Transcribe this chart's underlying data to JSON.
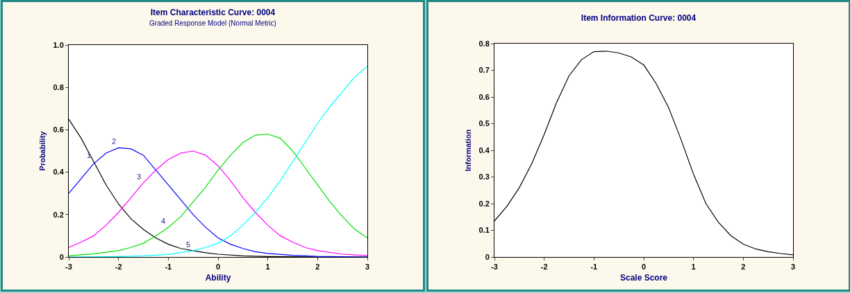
{
  "chart_data": [
    {
      "type": "line",
      "title": "Item Characteristic Curve: 0004",
      "subtitle": "Graded Response Model (Normal Metric)",
      "xlabel": "Ability",
      "ylabel": "Probability",
      "xlim": [
        -3,
        3
      ],
      "xticks": [
        -3,
        -2,
        -1,
        0,
        1,
        2,
        3
      ],
      "ylim": [
        0,
        1
      ],
      "yticks": [
        0,
        0.2,
        0.4,
        0.6,
        0.8,
        {
          "value": 1,
          "label": "1.0"
        }
      ],
      "marker": "none",
      "line_style": "solid",
      "series": [
        {
          "color": "#000000",
          "x": [
            -3,
            -2.75,
            -2.5,
            -2.25,
            -2,
            -1.75,
            -1.5,
            -1.25,
            -1,
            -0.75,
            -0.5,
            -0.25,
            0,
            0.5,
            1,
            1.5,
            2,
            3
          ],
          "values": [
            0.65,
            0.56,
            0.45,
            0.34,
            0.25,
            0.18,
            0.13,
            0.09,
            0.06,
            0.04,
            0.03,
            0.02,
            0.013,
            0.005,
            0.002,
            0.001,
            0,
            0
          ]
        },
        {
          "color": "#0000ff",
          "x": [
            -3,
            -2.75,
            -2.5,
            -2.25,
            -2,
            -1.75,
            -1.5,
            -1.25,
            -1,
            -0.75,
            -0.5,
            -0.25,
            0,
            0.25,
            0.5,
            0.75,
            1,
            1.5,
            2,
            2.5,
            3
          ],
          "values": [
            0.3,
            0.37,
            0.44,
            0.49,
            0.515,
            0.51,
            0.48,
            0.41,
            0.34,
            0.27,
            0.2,
            0.14,
            0.09,
            0.06,
            0.04,
            0.025,
            0.017,
            0.008,
            0.003,
            0.001,
            0
          ]
        },
        {
          "color": "#ff00ff",
          "x": [
            -3,
            -2.75,
            -2.5,
            -2.25,
            -2,
            -1.75,
            -1.5,
            -1.25,
            -1,
            -0.75,
            -0.5,
            -0.25,
            0,
            0.25,
            0.5,
            0.75,
            1,
            1.25,
            1.5,
            1.75,
            2,
            2.5,
            3
          ],
          "values": [
            0.045,
            0.07,
            0.1,
            0.15,
            0.21,
            0.28,
            0.35,
            0.41,
            0.46,
            0.49,
            0.5,
            0.48,
            0.43,
            0.36,
            0.28,
            0.21,
            0.15,
            0.1,
            0.07,
            0.045,
            0.03,
            0.013,
            0.007
          ]
        },
        {
          "color": "#00e000",
          "x": [
            -3,
            -2.5,
            -2,
            -1.75,
            -1.5,
            -1.25,
            -1,
            -0.75,
            -0.5,
            -0.25,
            0,
            0.25,
            0.5,
            0.75,
            1,
            1.25,
            1.5,
            1.75,
            2,
            2.25,
            2.5,
            2.75,
            3
          ],
          "values": [
            0.005,
            0.015,
            0.03,
            0.045,
            0.065,
            0.1,
            0.14,
            0.19,
            0.26,
            0.33,
            0.41,
            0.48,
            0.54,
            0.575,
            0.58,
            0.56,
            0.5,
            0.42,
            0.34,
            0.26,
            0.19,
            0.13,
            0.09
          ]
        },
        {
          "color": "#00ffff",
          "x": [
            -3,
            -2,
            -1.5,
            -1,
            -0.5,
            -0.25,
            0,
            0.25,
            0.5,
            0.75,
            1,
            1.25,
            1.5,
            1.75,
            2,
            2.25,
            2.5,
            2.75,
            3
          ],
          "values": [
            0,
            0.002,
            0.005,
            0.012,
            0.03,
            0.045,
            0.065,
            0.1,
            0.15,
            0.21,
            0.28,
            0.36,
            0.45,
            0.54,
            0.63,
            0.71,
            0.78,
            0.85,
            0.9
          ]
        }
      ],
      "annotations": [
        {
          "text": "1",
          "x": -2.5,
          "y": 0.45
        },
        {
          "text": "2",
          "x": -2,
          "y": 0.515
        },
        {
          "text": "3",
          "x": -1.5,
          "y": 0.35
        },
        {
          "text": "4",
          "x": -1,
          "y": 0.14
        },
        {
          "text": "5",
          "x": -0.5,
          "y": 0.03
        }
      ]
    },
    {
      "type": "line",
      "title": "Item Information Curve: 0004",
      "xlabel": "Scale Score",
      "ylabel": "Information",
      "xlim": [
        -3,
        3
      ],
      "xticks": [
        -3,
        -2,
        -1,
        0,
        1,
        2,
        3
      ],
      "ylim": [
        0,
        0.8
      ],
      "yticks": [
        0,
        0.1,
        0.2,
        0.3,
        0.4,
        0.5,
        0.6,
        0.7,
        0.8
      ],
      "marker": "none",
      "line_style": "solid",
      "series": [
        {
          "color": "#000000",
          "x": [
            -3,
            -2.75,
            -2.5,
            -2.25,
            -2,
            -1.75,
            -1.5,
            -1.25,
            -1,
            -0.75,
            -0.5,
            -0.25,
            0,
            0.25,
            0.5,
            0.75,
            1,
            1.25,
            1.5,
            1.75,
            2,
            2.25,
            2.5,
            2.75,
            3
          ],
          "values": [
            0.135,
            0.19,
            0.26,
            0.35,
            0.46,
            0.58,
            0.68,
            0.74,
            0.77,
            0.772,
            0.765,
            0.75,
            0.72,
            0.65,
            0.56,
            0.44,
            0.31,
            0.2,
            0.13,
            0.08,
            0.048,
            0.03,
            0.02,
            0.013,
            0.008
          ]
        }
      ]
    }
  ]
}
